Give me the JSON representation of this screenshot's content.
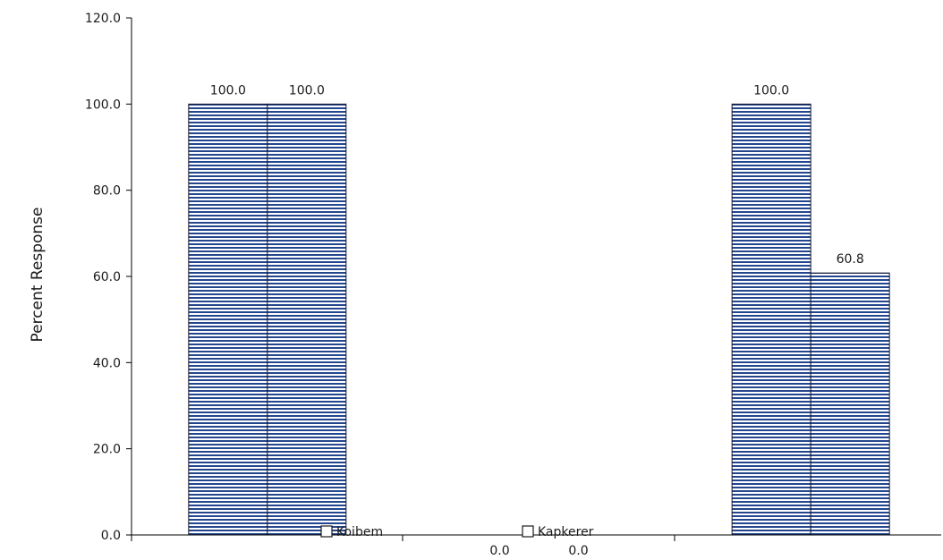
{
  "chart_data": {
    "type": "bar",
    "ylabel": "Percent Response",
    "ylim": [
      0,
      120
    ],
    "yticks": [
      "0.0",
      "20.0",
      "40.0",
      "60.0",
      "80.0",
      "100.0",
      "120.0"
    ],
    "ytick_values": [
      0,
      20,
      40,
      60,
      80,
      100,
      120
    ],
    "groups": 3,
    "series": [
      {
        "name": "Koibem",
        "values": [
          100.0,
          0.0,
          100.0
        ],
        "labels": [
          "100.0",
          "0.0",
          "100.0"
        ]
      },
      {
        "name": "Kapkerer",
        "values": [
          100.0,
          0.0,
          60.8
        ],
        "labels": [
          "100.0",
          "0.0",
          "60.8"
        ]
      }
    ],
    "legend": "bottom-center",
    "grid": false,
    "bar_fill": "#1f3f8f",
    "bar_background": "#ffffff"
  }
}
